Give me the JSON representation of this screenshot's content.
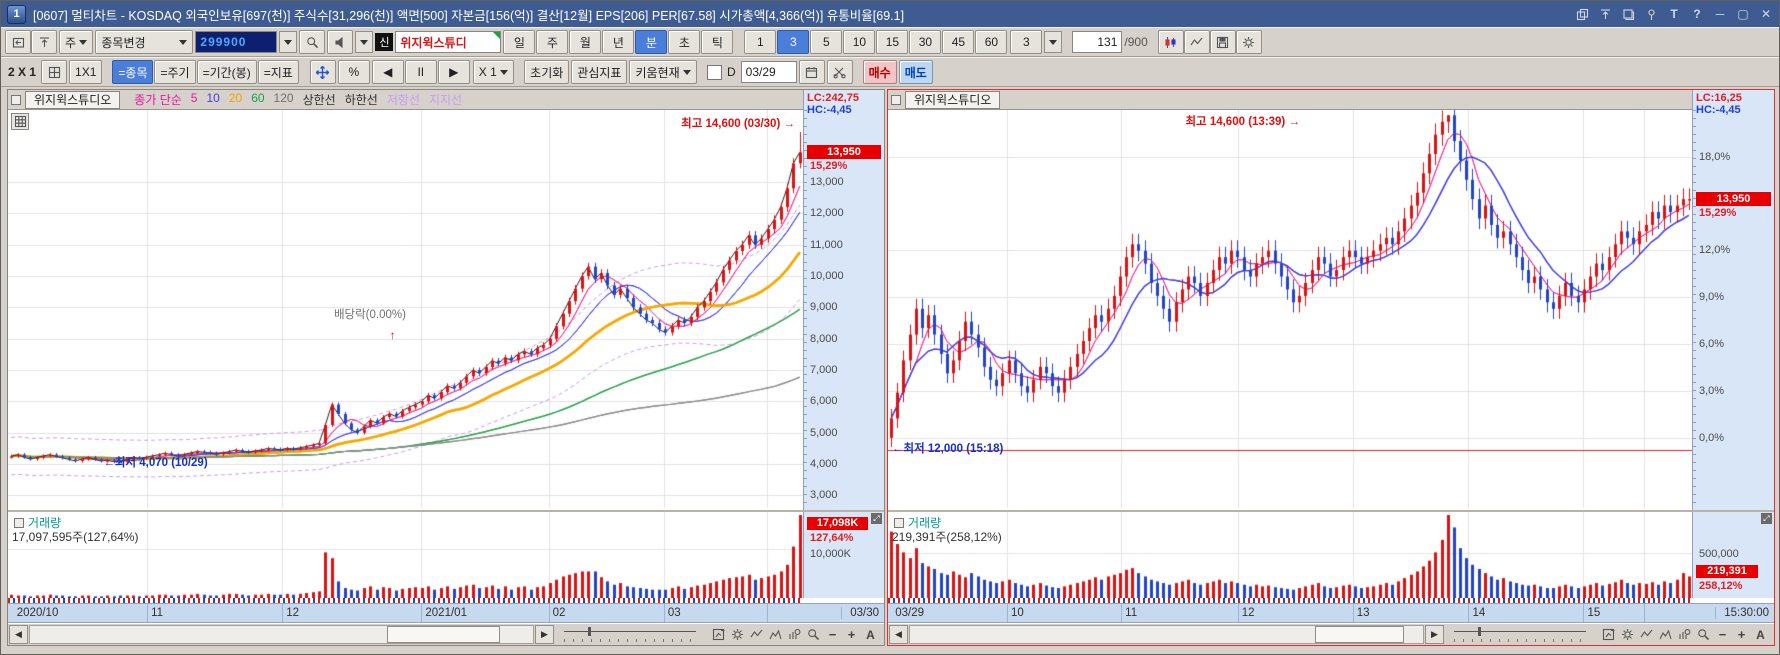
{
  "colors": {
    "up": "#dd1111",
    "down": "#2244cc",
    "accent_blue": "#4a7ed8",
    "titlebar": "#3e5b92",
    "axis_bg": "#d9e6f8",
    "band_bg": "#c7d9ef",
    "price_box": "#e80000",
    "red_text": "#e02020",
    "blue_text": "#2040d0",
    "vol_title": "#009898"
  },
  "title_bar": {
    "window_badge": "1",
    "title": "[0607] 멀티차트 - KOSDAQ 외국인보유[697(천)] 주식수[31,296(천)] 액면[500] 자본금[156(억)] 결산[12월] EPS[206] PER[67.58] 시가총액[4,366(억)] 유통비율[69.1]",
    "window_icons": [
      {
        "name": "popup-icon",
        "icon": "copy"
      },
      {
        "name": "pin-top-icon",
        "icon": "pintop"
      },
      {
        "name": "duplicate-icon",
        "icon": "dup"
      },
      {
        "name": "pin-icon",
        "icon": "pin"
      },
      {
        "name": "text-tool-icon",
        "icon": "T"
      },
      {
        "name": "help-icon",
        "icon": "?"
      },
      {
        "name": "minimize-icon",
        "icon": "min"
      },
      {
        "name": "maximize-icon",
        "icon": "max"
      },
      {
        "name": "close-icon",
        "icon": "close"
      }
    ]
  },
  "toolbar1": {
    "left_icons": [
      {
        "name": "prev-window-icon",
        "icon": "window"
      },
      {
        "name": "pin-chart-icon",
        "icon": "pintop"
      }
    ],
    "cycle_select": "주",
    "change_select": "종목변경",
    "code_value": "299900",
    "new_badge": "신",
    "stock_name": "위지윅스튜디",
    "period_buttons": [
      "일",
      "주",
      "월",
      "년",
      "분",
      "초",
      "틱"
    ],
    "period_selected": "분",
    "minute_buttons": [
      "1",
      "3",
      "5",
      "10",
      "15",
      "30",
      "45",
      "60"
    ],
    "minute_selected": "3",
    "minute_select_value": "3",
    "bar_index": "131",
    "bar_total": "/900",
    "right_icons": [
      {
        "name": "tick-chart-icon",
        "icon": "candl"
      },
      {
        "name": "line-chart-icon",
        "icon": "zigzag"
      },
      {
        "name": "save-icon",
        "icon": "disk"
      },
      {
        "name": "settings-icon",
        "icon": "gear"
      }
    ]
  },
  "toolbar2": {
    "layout_label": "2 X 1",
    "grid_pick_icon": "gridpick",
    "grid_button": "1X1",
    "link_buttons": [
      "=종목",
      "=주기",
      "=기간(봉)",
      "=지표"
    ],
    "link_selected": "=종목",
    "percent_button": "%",
    "playback_buttons": [
      "◀",
      "II",
      "▶"
    ],
    "scale_select": "X 1",
    "reset_button": "초기화",
    "interest_button": "관심지표",
    "kiwoom_button": "키움현재",
    "d_label": "D",
    "date_value": "03/29",
    "buy_button": "매수",
    "sell_button": "매도"
  },
  "chart_tools": [
    {
      "name": "chart-grid-icon",
      "icon": "gridchart"
    },
    {
      "name": "settings-gear-icon",
      "icon": "gear"
    },
    {
      "name": "indicator-edit-icon",
      "icon": "zigzag"
    },
    {
      "name": "trendline-icon",
      "icon": "peaks"
    },
    {
      "name": "chart-search-icon",
      "icon": "barlens"
    },
    {
      "name": "zoom-icon",
      "icon": "lens"
    },
    {
      "name": "zoom-out-icon",
      "icon": "minus"
    },
    {
      "name": "zoom-in-icon",
      "icon": "plus"
    },
    {
      "name": "auto-scale-icon",
      "icon": "A"
    }
  ],
  "left_chart": {
    "tab": "위지윅스튜디오",
    "legend": [
      {
        "label": "종가 단순",
        "color": "#e8189b"
      },
      {
        "label": "5",
        "color": "#e8189b"
      },
      {
        "label": "10",
        "color": "#4040e8"
      },
      {
        "label": "20",
        "color": "#f0a000"
      },
      {
        "label": "60",
        "color": "#18a048"
      },
      {
        "label": "120",
        "color": "#707070"
      },
      {
        "label": "상한선",
        "color": "#303030"
      },
      {
        "label": "하한선",
        "color": "#303030"
      },
      {
        "label": "저항선",
        "color": "#c89bf0"
      },
      {
        "label": "지지선",
        "color": "#c89bf0"
      }
    ],
    "lc": "LC:242,75",
    "hc": "HC:-4,45",
    "price_box": "13,950",
    "price_pct": "15,29%",
    "y_ticks": [
      {
        "t": "13,000",
        "v": 13000
      },
      {
        "t": "12,000",
        "v": 12000
      },
      {
        "t": "11,000",
        "v": 11000
      },
      {
        "t": "10,000",
        "v": 10000
      },
      {
        "t": "9,000",
        "v": 9000
      },
      {
        "t": "8,000",
        "v": 8000
      },
      {
        "t": "7,000",
        "v": 7000
      },
      {
        "t": "6,000",
        "v": 6000
      },
      {
        "t": "5,000",
        "v": 5000
      },
      {
        "t": "4,000",
        "v": 4000
      },
      {
        "t": "3,000",
        "v": 3000
      }
    ],
    "high_label": "최고 14,600 (03/30)",
    "low_label": "최저 4,070 (10/29)",
    "div_label": "배당락(0.00%)",
    "vol_title": "거래량",
    "vol_text": "17,097,595주(127,64%)",
    "vol_box": "17,098K",
    "vol_pct": "127,64%",
    "vol_tick": {
      "t": "10,000K",
      "f": 0.57
    },
    "x_labels": [
      {
        "t": "2020/10",
        "f": 0.006
      },
      {
        "t": "11",
        "f": 0.175
      },
      {
        "t": "12",
        "f": 0.345
      },
      {
        "t": "2021/01",
        "f": 0.52
      },
      {
        "t": "02",
        "f": 0.68
      },
      {
        "t": "03",
        "f": 0.825
      }
    ],
    "x_end": "03/30"
  },
  "right_chart": {
    "tab": "위지윅스튜디오",
    "legend": [],
    "lc": "LC:16,25",
    "hc": "HC:-4,45",
    "price_box": "13,950",
    "price_pct": "15,29%",
    "y_ticks": [
      {
        "t": "18,0%",
        "v": 18
      },
      {
        "t": "12,0%",
        "v": 12
      },
      {
        "t": "9,0%",
        "v": 9
      },
      {
        "t": "6,0%",
        "v": 6
      },
      {
        "t": "3,0%",
        "v": 3
      },
      {
        "t": "0,0%",
        "v": 0
      }
    ],
    "high_label": "최고 14,600 (13:39)",
    "low_label": "최저 12,000 (15:18)",
    "vol_title": "거래량",
    "vol_text": "219,391주(258,12%)",
    "vol_box": "219,391",
    "vol_pct": "258,12%",
    "vol_tick": {
      "t": "500,000",
      "f": 0.52
    },
    "x_labels": [
      {
        "t": "03/29",
        "f": 0.004
      },
      {
        "t": "10",
        "f": 0.148
      },
      {
        "t": "11",
        "f": 0.29
      },
      {
        "t": "12",
        "f": 0.435
      },
      {
        "t": "13",
        "f": 0.578
      },
      {
        "t": "14",
        "f": 0.722
      },
      {
        "t": "15",
        "f": 0.865
      }
    ],
    "x_end": "15:30:00"
  },
  "chart_data": {
    "left": {
      "type": "candlestick",
      "period": "daily",
      "range": "2020/10 - 2021/03/30",
      "last_price": 13950,
      "change_pct": 15.29,
      "volume": 17097595,
      "volume_pct": 127.64,
      "high_point": {
        "price": 14600,
        "date": "03/30"
      },
      "low_point": {
        "price": 4070,
        "date": "10/29"
      },
      "ylim": {
        "top": 15300,
        "bot": 2600
      },
      "hlines": [
        13000,
        12000,
        11000,
        10000,
        9000,
        8000,
        7000,
        6000,
        5000,
        4000,
        3000
      ],
      "vlines": [
        0.175,
        0.345,
        0.52,
        0.68,
        0.825,
        0.955
      ],
      "wick": 0.012,
      "close_line": "#222222",
      "env": {
        "p": 20,
        "f": 0.14,
        "c": "#cc99f0"
      },
      "mas": [
        {
          "p": 5,
          "c": "#f5338f",
          "w": 1
        },
        {
          "p": 10,
          "c": "#4040e8",
          "w": 1
        },
        {
          "p": 20,
          "c": "#f7a800",
          "w": 2.5
        },
        {
          "p": 60,
          "c": "#2fa34d",
          "w": 1.2
        },
        {
          "p": 120,
          "c": "#8c8c8c",
          "w": 1.2
        }
      ],
      "high_override": {
        "i": 123,
        "price": 14600
      },
      "low_override": {
        "i": 17,
        "price": 4070
      },
      "closes": [
        4250,
        4300,
        4220,
        4160,
        4210,
        4260,
        4300,
        4250,
        4200,
        4150,
        4100,
        4160,
        4210,
        4150,
        4100,
        4120,
        4080,
        4070,
        4150,
        4210,
        4180,
        4220,
        4260,
        4300,
        4350,
        4300,
        4260,
        4310,
        4360,
        4400,
        4380,
        4350,
        4310,
        4360,
        4400,
        4450,
        4410,
        4380,
        4420,
        4450,
        4500,
        4480,
        4460,
        4500,
        4480,
        4520,
        4560,
        4610,
        4660,
        5250,
        5900,
        5600,
        5300,
        5100,
        5000,
        5200,
        5400,
        5310,
        5500,
        5610,
        5520,
        5700,
        5810,
        5900,
        6000,
        6200,
        6100,
        6300,
        6500,
        6420,
        6600,
        6800,
        7000,
        6900,
        7100,
        7300,
        7210,
        7400,
        7310,
        7500,
        7600,
        7510,
        7700,
        7800,
        8000,
        8400,
        8800,
        9200,
        9600,
        10000,
        10300,
        9900,
        10100,
        9700,
        9400,
        9600,
        9300,
        9000,
        8800,
        8600,
        8500,
        8300,
        8200,
        8400,
        8600,
        8500,
        8700,
        9000,
        9200,
        9500,
        9800,
        10200,
        10500,
        10800,
        11000,
        11300,
        11000,
        11200,
        11500,
        11800,
        12200,
        12800,
        13600,
        13950
      ],
      "volumes": [
        4,
        3,
        3,
        2,
        3,
        3,
        4,
        3,
        3,
        2,
        2,
        3,
        3,
        2,
        2,
        3,
        2,
        3,
        3,
        3,
        2,
        3,
        3,
        4,
        4,
        3,
        3,
        4,
        4,
        5,
        4,
        3,
        3,
        4,
        5,
        5,
        4,
        3,
        4,
        4,
        5,
        4,
        4,
        5,
        4,
        5,
        6,
        7,
        8,
        55,
        48,
        20,
        12,
        10,
        9,
        12,
        14,
        10,
        13,
        12,
        9,
        11,
        12,
        13,
        12,
        14,
        10,
        12,
        14,
        11,
        13,
        15,
        16,
        12,
        13,
        15,
        11,
        14,
        10,
        13,
        14,
        10,
        13,
        14,
        18,
        22,
        26,
        28,
        30,
        32,
        32,
        32,
        25,
        20,
        16,
        18,
        14,
        13,
        12,
        11,
        10,
        10,
        10,
        12,
        14,
        11,
        13,
        15,
        16,
        18,
        20,
        22,
        24,
        25,
        26,
        28,
        22,
        24,
        26,
        28,
        32,
        40,
        62,
        100
      ]
    },
    "right": {
      "type": "candlestick",
      "period": "3-minute",
      "range": "03/29 09:00 - 15:30",
      "percent": true,
      "base": 12100,
      "open_first": 12100,
      "last_price": 13950,
      "change_pct": 15.29,
      "volume": 219391,
      "volume_pct": 258.12,
      "high_point": {
        "price": 14600,
        "time": "13:39"
      },
      "low_point": {
        "price": 12000,
        "time": "15:18"
      },
      "ylim": {
        "top": 21,
        "bot": -4.5
      },
      "hlines": [
        18,
        12,
        9,
        6,
        3,
        0
      ],
      "vlines": [
        0.148,
        0.29,
        0.435,
        0.578,
        0.722,
        0.865,
        0.94
      ],
      "wick": 0.006,
      "redline": -0.8,
      "mas": [
        {
          "p": 5,
          "c": "#f5338f",
          "w": 1
        },
        {
          "p": 10,
          "c": "#4040e8",
          "w": 1.2
        }
      ],
      "high_override": {
        "i": 90,
        "price": 14600
      },
      "closes": [
        12250,
        12450,
        12700,
        12900,
        13100,
        12950,
        13050,
        12900,
        12750,
        12600,
        12700,
        12850,
        13000,
        12900,
        12800,
        12650,
        12550,
        12500,
        12600,
        12700,
        12600,
        12500,
        12450,
        12550,
        12650,
        12600,
        12500,
        12450,
        12550,
        12650,
        12750,
        12850,
        12950,
        13050,
        13000,
        13100,
        13200,
        13350,
        13500,
        13600,
        13550,
        13450,
        13300,
        13200,
        13100,
        13000,
        13150,
        13250,
        13350,
        13300,
        13200,
        13300,
        13400,
        13500,
        13450,
        13550,
        13500,
        13400,
        13350,
        13450,
        13500,
        13550,
        13450,
        13350,
        13250,
        13150,
        13200,
        13300,
        13400,
        13500,
        13450,
        13350,
        13400,
        13500,
        13550,
        13500,
        13450,
        13500,
        13550,
        13600,
        13650,
        13600,
        13700,
        13800,
        13900,
        14000,
        14150,
        14300,
        14450,
        14550,
        14600,
        14400,
        14250,
        14100,
        13950,
        13800,
        13900,
        13750,
        13650,
        13700,
        13600,
        13500,
        13400,
        13300,
        13350,
        13250,
        13150,
        13100,
        13200,
        13300,
        13200,
        13150,
        13250,
        13350,
        13450,
        13400,
        13500,
        13600,
        13700,
        13650,
        13600,
        13700,
        13750,
        13850,
        13800,
        13900,
        13850,
        13900,
        13950,
        13950
      ],
      "volumes": [
        80,
        65,
        55,
        48,
        60,
        42,
        38,
        35,
        30,
        28,
        32,
        28,
        25,
        30,
        26,
        22,
        20,
        18,
        20,
        22,
        18,
        16,
        14,
        16,
        18,
        15,
        13,
        12,
        14,
        16,
        18,
        20,
        22,
        25,
        22,
        26,
        28,
        30,
        34,
        36,
        30,
        26,
        22,
        20,
        18,
        16,
        18,
        20,
        22,
        18,
        16,
        18,
        20,
        22,
        18,
        20,
        18,
        16,
        14,
        16,
        14,
        15,
        13,
        12,
        11,
        10,
        12,
        14,
        16,
        18,
        14,
        12,
        13,
        15,
        16,
        14,
        12,
        13,
        14,
        16,
        18,
        16,
        20,
        24,
        28,
        32,
        38,
        45,
        55,
        70,
        100,
        85,
        60,
        48,
        40,
        35,
        30,
        26,
        22,
        24,
        20,
        18,
        16,
        15,
        16,
        14,
        12,
        12,
        14,
        16,
        14,
        12,
        14,
        16,
        18,
        15,
        17,
        19,
        22,
        18,
        16,
        18,
        17,
        19,
        16,
        20,
        18,
        22,
        30,
        26
      ]
    }
  }
}
